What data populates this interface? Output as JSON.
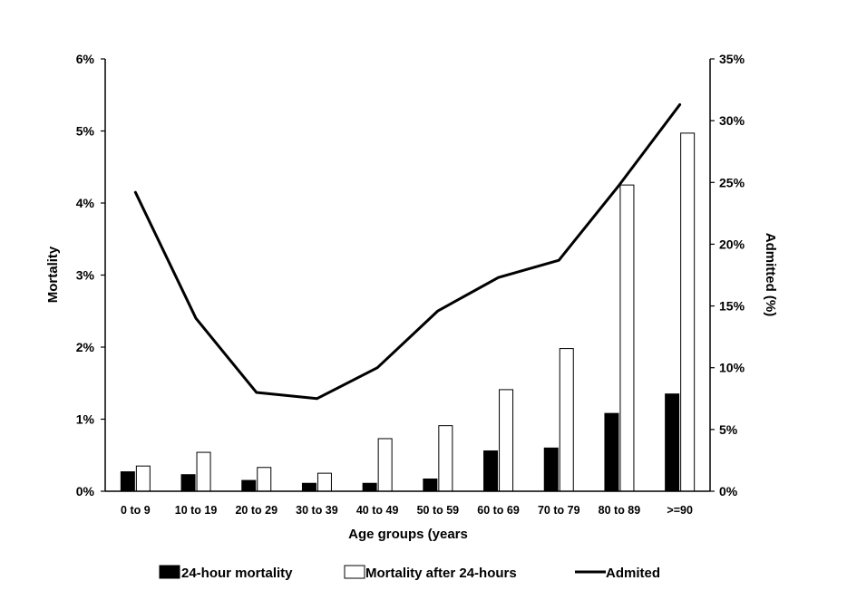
{
  "chart_data": {
    "type": "bar",
    "categories": [
      "0 to 9",
      "10 to 19",
      "20 to 29",
      "30 to 39",
      "40 to 49",
      "50 to 59",
      "60 to 69",
      "70 to 79",
      "80 to 89",
      ">=90"
    ],
    "series": [
      {
        "name": "24-hour mortality",
        "type": "bar",
        "axis": "left",
        "color": "#000000",
        "values": [
          0.27,
          0.23,
          0.15,
          0.11,
          0.11,
          0.17,
          0.56,
          0.6,
          1.08,
          1.35
        ]
      },
      {
        "name": "Mortality after 24-hours",
        "type": "bar",
        "axis": "left",
        "color": "#ffffff",
        "values": [
          0.35,
          0.54,
          0.33,
          0.25,
          0.73,
          0.91,
          1.41,
          1.98,
          4.25,
          4.97
        ]
      },
      {
        "name": "Admited",
        "type": "line",
        "axis": "right",
        "color": "#000000",
        "values": [
          24.2,
          14.0,
          8.0,
          7.5,
          10.0,
          14.6,
          17.3,
          18.7,
          24.8,
          31.3
        ]
      }
    ],
    "xlabel": "Age groups (years",
    "ylabel": "Mortality",
    "y2label": "Admitted (%)",
    "ylim": [
      0,
      6
    ],
    "y2lim": [
      0,
      35
    ],
    "yticks": [
      "0%",
      "1%",
      "2%",
      "3%",
      "4%",
      "5%",
      "6%"
    ],
    "y2ticks": [
      "0%",
      "5%",
      "10%",
      "15%",
      "20%",
      "25%",
      "30%",
      "35%"
    ],
    "grid": false,
    "legend_position": "bottom"
  }
}
